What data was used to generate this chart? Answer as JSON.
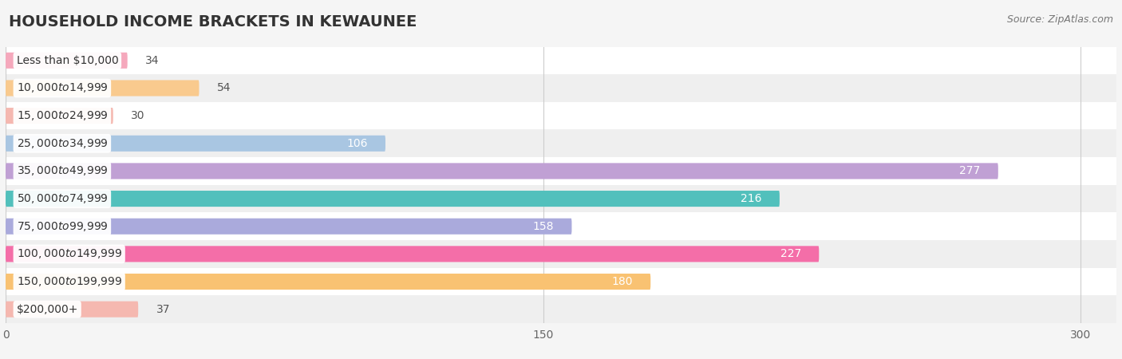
{
  "title": "HOUSEHOLD INCOME BRACKETS IN KEWAUNEE",
  "source": "Source: ZipAtlas.com",
  "categories": [
    "Less than $10,000",
    "$10,000 to $14,999",
    "$15,000 to $24,999",
    "$25,000 to $34,999",
    "$35,000 to $49,999",
    "$50,000 to $74,999",
    "$75,000 to $99,999",
    "$100,000 to $149,999",
    "$150,000 to $199,999",
    "$200,000+"
  ],
  "values": [
    34,
    54,
    30,
    106,
    277,
    216,
    158,
    227,
    180,
    37
  ],
  "bar_colors": [
    "#f5a8bc",
    "#f9ca8e",
    "#f5b8b0",
    "#a9c6e2",
    "#c0a0d4",
    "#52c0bc",
    "#aaaadc",
    "#f46ea8",
    "#f9c272",
    "#f5b8b0"
  ],
  "label_colors_inside": "#ffffff",
  "label_colors_outside": "#555555",
  "inside_threshold": 100,
  "xlim": [
    0,
    310
  ],
  "xticks": [
    0,
    150,
    300
  ],
  "background_color": "#f5f5f5",
  "title_fontsize": 14,
  "label_fontsize": 10,
  "value_fontsize": 10,
  "bar_height": 0.58,
  "row_colors": [
    "#ffffff",
    "#efefef"
  ]
}
